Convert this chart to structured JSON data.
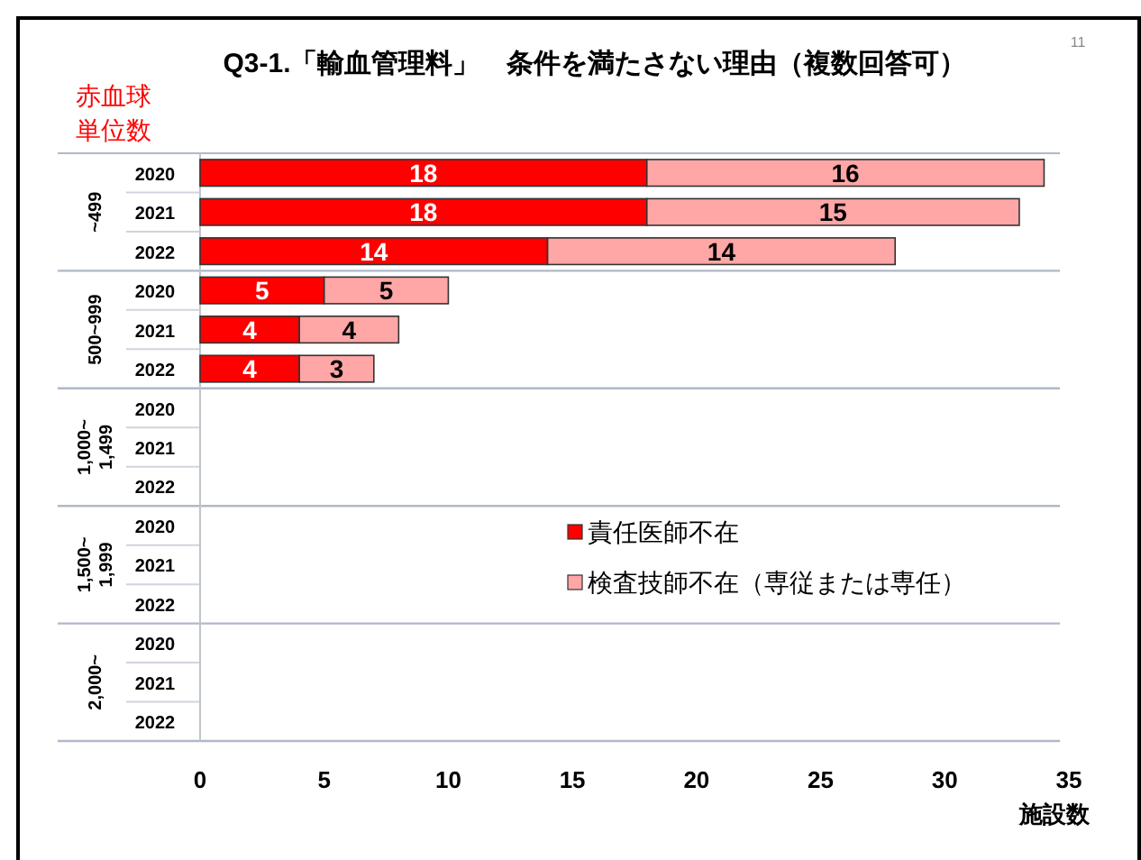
{
  "chart_data": {
    "type": "bar",
    "orientation": "horizontal",
    "stacked": true,
    "title": "Q3-1.「輸血管理料」　条件を満たさない理由（複数回答可）",
    "ylabel": "赤血球単位数",
    "xlabel": "施設数",
    "categories": [
      "2020",
      "2021",
      "2022",
      "2020",
      "2021",
      "2022",
      "2020",
      "2021",
      "2022",
      "2020",
      "2021",
      "2022",
      "2020",
      "2021",
      "2022"
    ],
    "series": [
      {
        "name": "責任医師不在",
        "color": "#ff0000",
        "values": [
          18,
          18,
          14,
          5,
          4,
          4,
          null,
          null,
          null,
          null,
          null,
          null,
          null,
          null,
          null
        ]
      },
      {
        "name": "検査技師不在（専従または専任）",
        "color": "#ffa6a6",
        "values": [
          16,
          15,
          14,
          5,
          4,
          3,
          null,
          null,
          null,
          null,
          null,
          null,
          null,
          null,
          null
        ]
      }
    ],
    "xlim": [
      0,
      35
    ],
    "xticks": [
      0,
      5,
      10,
      15,
      20,
      25,
      30,
      35
    ],
    "data_labels": true,
    "legend": "right",
    "annotations": [
      "~499",
      "500~999",
      "1,000~1,499",
      "1,500~1,999",
      "2,000~",
      "11"
    ]
  }
}
